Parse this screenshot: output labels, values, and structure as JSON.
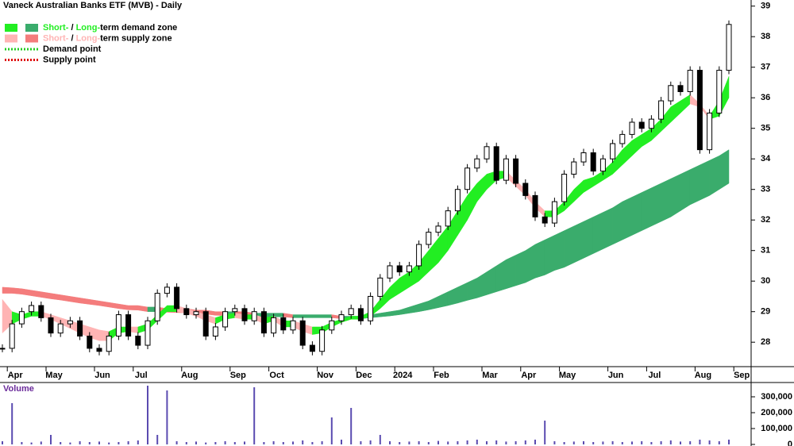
{
  "chart_data": {
    "type": "stock",
    "title": "Vaneck Australian Banks ETF (MVB) - Daily",
    "categories": [
      null,
      "Apr",
      null,
      null,
      null,
      "May",
      null,
      null,
      null,
      null,
      "Jun",
      null,
      null,
      null,
      "Jul",
      null,
      null,
      null,
      null,
      "Aug",
      null,
      null,
      null,
      null,
      "Sep",
      null,
      null,
      null,
      "Oct",
      null,
      null,
      null,
      null,
      "Nov",
      null,
      null,
      null,
      "Dec",
      null,
      null,
      null,
      "2024",
      null,
      null,
      null,
      "Feb",
      null,
      null,
      null,
      null,
      "Mar",
      null,
      null,
      null,
      "Apr",
      null,
      null,
      null,
      "May",
      null,
      null,
      null,
      null,
      "Jun",
      null,
      null,
      null,
      "Jul",
      null,
      null,
      null,
      null,
      "Aug",
      null,
      null,
      null,
      "Sep"
    ],
    "values": [
      27.8,
      28.6,
      29.0,
      29.2,
      28.8,
      28.3,
      28.6,
      28.7,
      28.2,
      27.8,
      27.7,
      28.2,
      28.9,
      28.2,
      27.9,
      28.7,
      29.6,
      29.8,
      29.1,
      28.9,
      29.0,
      28.2,
      28.5,
      29.0,
      29.1,
      28.7,
      29.0,
      28.3,
      28.8,
      28.4,
      28.7,
      27.9,
      27.7,
      28.4,
      28.7,
      28.9,
      29.1,
      28.7,
      29.5,
      30.1,
      30.5,
      30.3,
      30.5,
      31.2,
      31.6,
      31.8,
      32.3,
      33.0,
      33.7,
      34.0,
      34.4,
      33.3,
      34.0,
      33.2,
      32.8,
      32.1,
      31.9,
      32.6,
      33.5,
      33.9,
      34.2,
      33.6,
      34.0,
      34.5,
      34.8,
      35.2,
      35.0,
      35.3,
      35.9,
      36.4,
      36.2,
      36.9,
      34.3,
      35.5,
      36.9,
      38.4,
      null
    ],
    "zones": [
      {
        "upper": [
          29.8,
          29.78,
          29.75,
          29.7,
          29.65,
          29.6,
          29.55,
          29.5,
          29.45,
          29.4,
          29.35,
          29.3,
          29.25,
          29.2,
          29.2,
          29.15,
          29.15,
          29.1,
          29.1,
          29.1,
          29.05,
          29.05,
          29.0,
          29.0,
          29.0,
          29.0,
          28.95,
          28.95,
          28.95,
          28.95,
          28.9,
          28.9,
          28.9,
          28.9,
          28.9,
          28.85,
          28.85,
          28.85,
          28.9,
          28.95,
          29.0,
          29.05,
          29.15,
          29.25,
          29.35,
          29.5,
          29.65,
          29.8,
          29.95,
          30.1,
          30.3,
          30.5,
          30.7,
          30.85,
          31.0,
          31.2,
          31.35,
          31.5,
          31.65,
          31.8,
          31.95,
          32.1,
          32.25,
          32.4,
          32.6,
          32.75,
          32.9,
          33.05,
          33.2,
          33.35,
          33.5,
          33.65,
          33.8,
          33.95,
          34.1,
          34.3,
          null
        ],
        "lower": [
          29.6,
          29.6,
          29.57,
          29.52,
          29.47,
          29.42,
          29.38,
          29.33,
          29.28,
          29.24,
          29.2,
          29.15,
          29.1,
          29.06,
          29.05,
          29.0,
          29.0,
          28.98,
          28.97,
          28.96,
          28.93,
          28.92,
          28.88,
          28.87,
          28.87,
          28.86,
          28.83,
          28.83,
          28.83,
          28.83,
          28.8,
          28.8,
          28.8,
          28.8,
          28.8,
          28.77,
          28.77,
          28.77,
          28.8,
          28.83,
          28.86,
          28.9,
          28.95,
          29.0,
          29.06,
          29.13,
          29.2,
          29.28,
          29.37,
          29.45,
          29.55,
          29.65,
          29.75,
          29.85,
          29.95,
          30.1,
          30.2,
          30.35,
          30.45,
          30.6,
          30.75,
          30.9,
          31.05,
          31.2,
          31.35,
          31.5,
          31.65,
          31.8,
          31.95,
          32.1,
          32.3,
          32.5,
          32.65,
          32.8,
          33.0,
          33.2,
          null
        ],
        "demand_color": "#3aac6c",
        "supply_color": "#f47c7c"
      },
      {
        "upper": [
          29.4,
          29.0,
          28.9,
          29.0,
          29.0,
          28.9,
          28.8,
          28.7,
          28.6,
          28.5,
          28.4,
          28.35,
          28.5,
          28.5,
          28.5,
          28.6,
          28.9,
          29.2,
          29.2,
          29.1,
          29.0,
          28.9,
          28.8,
          28.9,
          28.95,
          28.9,
          28.9,
          28.8,
          28.85,
          28.7,
          28.7,
          28.6,
          28.5,
          28.5,
          28.65,
          28.75,
          28.85,
          28.85,
          29.0,
          29.4,
          29.8,
          30.1,
          30.3,
          30.6,
          31.0,
          31.4,
          31.8,
          32.3,
          32.8,
          33.2,
          33.5,
          33.6,
          33.6,
          33.3,
          33.0,
          32.6,
          32.3,
          32.3,
          32.6,
          33.0,
          33.3,
          33.4,
          33.6,
          33.9,
          34.3,
          34.6,
          34.8,
          35.0,
          35.3,
          35.7,
          35.9,
          36.1,
          35.8,
          35.4,
          35.9,
          36.7,
          null
        ],
        "lower": [
          28.3,
          28.6,
          28.75,
          28.85,
          28.85,
          28.75,
          28.6,
          28.45,
          28.3,
          28.15,
          28.05,
          28.05,
          28.3,
          28.35,
          28.3,
          28.4,
          28.7,
          29.0,
          29.0,
          28.95,
          28.85,
          28.7,
          28.6,
          28.75,
          28.8,
          28.75,
          28.75,
          28.6,
          28.7,
          28.5,
          28.5,
          28.35,
          28.25,
          28.3,
          28.5,
          28.65,
          28.75,
          28.75,
          28.85,
          29.1,
          29.4,
          29.6,
          29.8,
          30.0,
          30.3,
          30.6,
          31.0,
          31.5,
          32.0,
          32.6,
          33.0,
          33.3,
          33.4,
          33.1,
          32.8,
          32.4,
          32.1,
          32.1,
          32.3,
          32.6,
          32.9,
          33.1,
          33.3,
          33.5,
          33.8,
          34.1,
          34.4,
          34.6,
          34.9,
          35.2,
          35.5,
          35.8,
          35.7,
          35.3,
          35.4,
          36.0,
          null
        ],
        "demand_color": "#22ee22",
        "supply_color": "#ffb4b4"
      }
    ],
    "ylim": [
      27.2,
      39.2
    ],
    "yticks": [
      28,
      29,
      30,
      31,
      32,
      33,
      34,
      35,
      36,
      37,
      38,
      39
    ],
    "legend": [
      {
        "parts": [
          "Short-",
          " / ",
          "Long-",
          "term demand zone"
        ],
        "colors": [
          "#22ee22",
          "#3aac6c"
        ]
      },
      {
        "parts": [
          "Short-",
          " / ",
          "Long-",
          "term supply zone"
        ],
        "colors": [
          "#ffb4b4",
          "#f47c7c"
        ]
      },
      {
        "text": "Demand point",
        "color": "#22cc22"
      },
      {
        "text": "Supply point",
        "color": "#dd0000"
      }
    ],
    "volume": {
      "label": "Volume",
      "color": "#5a4bb0",
      "values": [
        20000,
        260000,
        15000,
        12000,
        18000,
        60000,
        15000,
        12000,
        20000,
        15000,
        18000,
        12000,
        15000,
        20000,
        25000,
        370000,
        60000,
        340000,
        20000,
        15000,
        18000,
        12000,
        15000,
        20000,
        15000,
        18000,
        360000,
        15000,
        20000,
        15000,
        18000,
        25000,
        15000,
        20000,
        170000,
        30000,
        230000,
        20000,
        25000,
        60000,
        20000,
        15000,
        18000,
        20000,
        15000,
        22000,
        18000,
        20000,
        25000,
        30000,
        20000,
        25000,
        18000,
        20000,
        25000,
        30000,
        150000,
        20000,
        15000,
        18000,
        20000,
        15000,
        18000,
        20000,
        15000,
        18000,
        20000,
        15000,
        20000,
        25000,
        18000,
        20000,
        30000,
        25000,
        20000,
        30000,
        null
      ],
      "ylim": [
        0,
        375000
      ],
      "yticks": [
        {
          "value": 0,
          "label": "0"
        },
        {
          "value": 100000,
          "label": "100,000"
        },
        {
          "value": 200000,
          "label": "200,000"
        },
        {
          "value": 300000,
          "label": "300,000"
        }
      ]
    }
  }
}
